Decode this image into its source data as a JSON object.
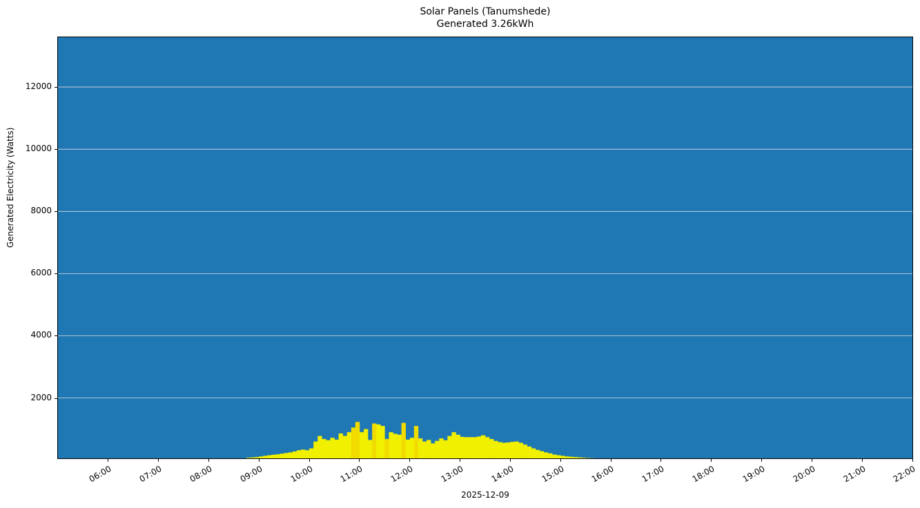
{
  "title": {
    "line1": "Solar Panels (Tanumshede)",
    "line2": "Generated 3.26kWh"
  },
  "colors": {
    "background": "#1f77b4",
    "bar": "#f0f000",
    "bar_alt": "#f2dc00",
    "grid": "#dddddd"
  },
  "chart_data": {
    "type": "bar",
    "title": "Solar Panels (Tanumshede)\nGenerated 3.26kWh",
    "xlabel": "2025-12-09",
    "ylabel": "Generated Electricity (Watts)",
    "xlim": [
      "05:00",
      "22:00"
    ],
    "ylim": [
      60,
      13600
    ],
    "grid": {
      "y": true,
      "x": false,
      "color": "white"
    },
    "yticks": [
      2000,
      4000,
      6000,
      8000,
      10000,
      12000
    ],
    "xticks": [
      "06:00",
      "07:00",
      "08:00",
      "09:00",
      "10:00",
      "11:00",
      "12:00",
      "13:00",
      "14:00",
      "15:00",
      "16:00",
      "17:00",
      "18:00",
      "19:00",
      "20:00",
      "21:00",
      "22:00"
    ],
    "legend": null,
    "total_kwh": 3.26,
    "x": [
      "08:45",
      "08:50",
      "08:55",
      "09:00",
      "09:05",
      "09:10",
      "09:15",
      "09:20",
      "09:25",
      "09:30",
      "09:35",
      "09:40",
      "09:45",
      "09:50",
      "09:55",
      "10:00",
      "10:05",
      "10:10",
      "10:15",
      "10:20",
      "10:25",
      "10:30",
      "10:35",
      "10:40",
      "10:45",
      "10:50",
      "10:55",
      "11:00",
      "11:05",
      "11:10",
      "11:15",
      "11:20",
      "11:25",
      "11:30",
      "11:35",
      "11:40",
      "11:45",
      "11:50",
      "11:55",
      "12:00",
      "12:05",
      "12:10",
      "12:15",
      "12:20",
      "12:25",
      "12:30",
      "12:35",
      "12:40",
      "12:45",
      "12:50",
      "12:55",
      "13:00",
      "13:05",
      "13:10",
      "13:15",
      "13:20",
      "13:25",
      "13:30",
      "13:35",
      "13:40",
      "13:45",
      "13:50",
      "13:55",
      "14:00",
      "14:05",
      "14:10",
      "14:15",
      "14:20",
      "14:25",
      "14:30",
      "14:35",
      "14:40",
      "14:45",
      "14:50",
      "14:55",
      "15:00",
      "15:05",
      "15:10",
      "15:15",
      "15:20",
      "15:25",
      "15:30",
      "15:35",
      "15:40"
    ],
    "values": [
      80,
      90,
      100,
      120,
      140,
      160,
      175,
      190,
      210,
      230,
      250,
      280,
      320,
      340,
      320,
      380,
      600,
      780,
      680,
      640,
      720,
      660,
      860,
      780,
      900,
      1050,
      1230,
      900,
      1000,
      650,
      1180,
      1150,
      1100,
      680,
      900,
      850,
      820,
      1200,
      660,
      720,
      1100,
      700,
      600,
      650,
      540,
      620,
      700,
      640,
      780,
      900,
      820,
      750,
      740,
      740,
      740,
      760,
      800,
      740,
      680,
      620,
      580,
      560,
      570,
      590,
      600,
      560,
      500,
      440,
      380,
      330,
      290,
      250,
      220,
      180,
      160,
      140,
      120,
      110,
      100,
      90,
      80,
      70,
      65,
      60
    ],
    "highlight_indices": [
      25,
      26,
      30,
      33,
      37,
      40
    ]
  }
}
